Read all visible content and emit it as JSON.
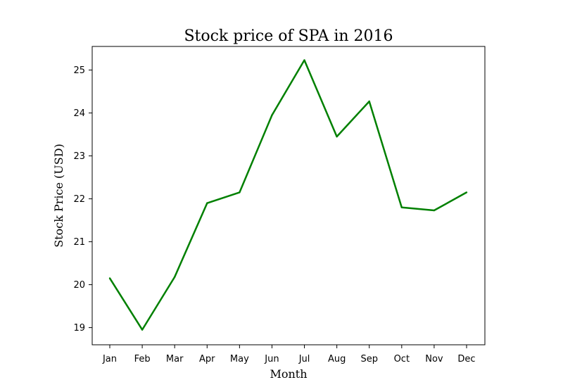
{
  "chart_data": {
    "type": "line",
    "title": "Stock price of SPA in 2016",
    "xlabel": "Month",
    "ylabel": "Stock Price (USD)",
    "categories": [
      "Jan",
      "Feb",
      "Mar",
      "Apr",
      "May",
      "Jun",
      "Jul",
      "Aug",
      "Sep",
      "Oct",
      "Nov",
      "Dec"
    ],
    "series": [
      {
        "values": [
          20.15,
          18.95,
          20.18,
          21.9,
          22.15,
          23.95,
          25.23,
          23.45,
          24.27,
          21.8,
          21.73,
          22.15
        ],
        "color": "#008000"
      }
    ],
    "ylim": [
      18.6,
      25.55
    ],
    "yticks": [
      19,
      20,
      21,
      22,
      23,
      24,
      25
    ],
    "grid": false,
    "legend": false
  }
}
